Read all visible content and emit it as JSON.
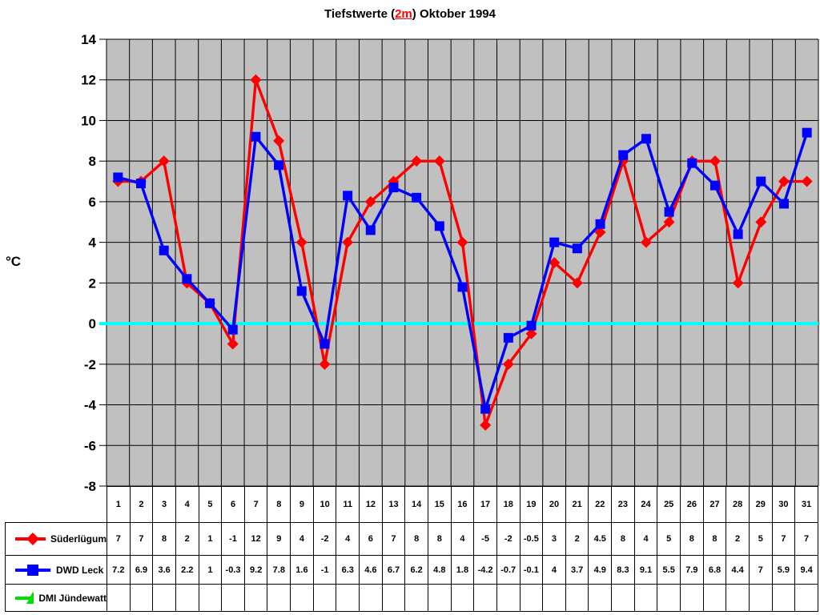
{
  "title": {
    "prefix": "Tiefstwerte (",
    "highlight": "2m",
    "suffix": ") Oktober 1994",
    "highlight_color": "#ff0000"
  },
  "y_axis": {
    "unit": "°C",
    "tick_labels": [
      14,
      12,
      10,
      8,
      6,
      4,
      2,
      0,
      -2,
      -4,
      -6,
      -8
    ]
  },
  "chart_data": {
    "type": "line",
    "title": "Tiefstwerte (2m) Oktober 1994",
    "xlabel": "",
    "ylabel": "°C",
    "ylim": [
      -8,
      14
    ],
    "ytick_step": 2,
    "grid": true,
    "plot_bg": "#c0c0c0",
    "gridline_color": "#000000",
    "zero_line_color": "#00ffff",
    "legend_position": "table-left",
    "categories": [
      1,
      2,
      3,
      4,
      5,
      6,
      7,
      8,
      9,
      10,
      11,
      12,
      13,
      14,
      15,
      16,
      17,
      18,
      19,
      20,
      21,
      22,
      23,
      24,
      25,
      26,
      27,
      28,
      29,
      30,
      31
    ],
    "series": [
      {
        "name": "Süderlügum",
        "color": "#ff0000",
        "marker": "diamond",
        "values": [
          7,
          7,
          8,
          2,
          1,
          -1,
          12,
          9,
          4,
          -2,
          4,
          6,
          7,
          8,
          8,
          4,
          -5,
          -2,
          -0.5,
          3,
          2,
          4.5,
          8,
          4,
          5,
          8,
          8,
          2,
          5,
          7,
          7
        ]
      },
      {
        "name": "DWD Leck",
        "color": "#0000ff",
        "marker": "square",
        "values": [
          7.2,
          6.9,
          3.6,
          2.2,
          1,
          -0.3,
          9.2,
          7.8,
          1.6,
          -1,
          6.3,
          4.6,
          6.7,
          6.2,
          4.8,
          1.8,
          -4.2,
          -0.7,
          -0.1,
          4,
          3.7,
          4.9,
          8.3,
          9.1,
          5.5,
          7.9,
          6.8,
          4.4,
          7,
          5.9,
          9.4
        ]
      },
      {
        "name": "DMI Jündewatt",
        "color": "#00e000",
        "marker": "triangle",
        "values": []
      }
    ]
  }
}
